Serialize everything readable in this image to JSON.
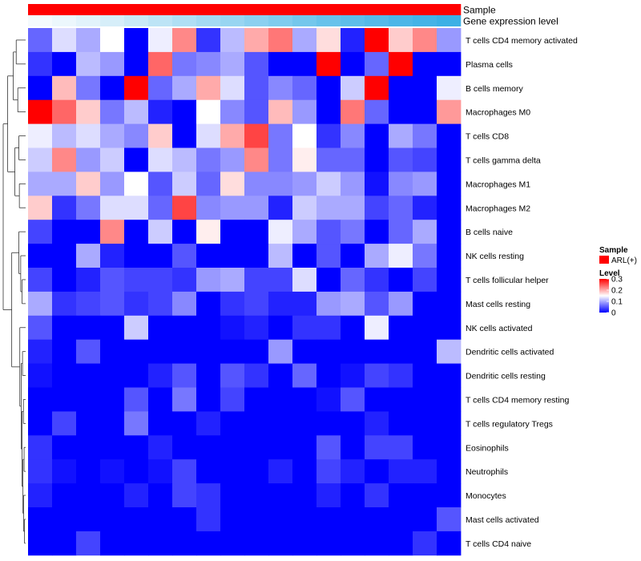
{
  "chart_data": {
    "type": "heatmap",
    "title": "",
    "n_columns": 18,
    "annotations": [
      {
        "name": "Sample",
        "colors": [
          "#ff0000"
        ]
      },
      {
        "name": "Gene expression level",
        "colors": [
          "#f4fafd",
          "#ecf7fc",
          "#e2f3fb",
          "#d6eef9",
          "#c9e9f7",
          "#bde4f6",
          "#b0dff4",
          "#a4daf3",
          "#98d5f1",
          "#8bd0f0",
          "#80ccee",
          "#74c7ec",
          "#68c2eb",
          "#5ebee9",
          "#55bae8",
          "#4cb6e7",
          "#44b3e6",
          "#3cb0e5"
        ]
      }
    ],
    "rows": [
      "T cells CD4 memory activated",
      "Plasma cells",
      "B cells memory",
      "Macrophages M0",
      "T cells CD8",
      "T cells gamma delta",
      "Macrophages M1",
      "Macrophages M2",
      "B cells naive",
      "NK cells resting",
      "T cells follicular helper",
      "Mast cells resting",
      "NK cells activated",
      "Dendritic cells activated",
      "Dendritic cells resting",
      "T cells CD4 memory resting",
      "T cells regulatory  Tregs",
      "Eosinophils",
      "Neutrophils",
      "Monocytes",
      "Mast cells activated",
      "T cells CD4 naive"
    ],
    "values": [
      [
        0.06,
        0.13,
        0.1,
        0.15,
        0.0,
        0.14,
        0.22,
        0.03,
        0.11,
        0.2,
        0.23,
        0.1,
        0.17,
        0.02,
        0.3,
        0.18,
        0.22,
        0.09
      ],
      [
        0.03,
        0.0,
        0.11,
        0.09,
        0.0,
        0.24,
        0.07,
        0.08,
        0.1,
        0.05,
        0.0,
        0.0,
        0.3,
        0.0,
        0.06,
        0.3,
        0.0,
        0.0
      ],
      [
        0.0,
        0.19,
        0.07,
        0.0,
        0.3,
        0.06,
        0.1,
        0.2,
        0.13,
        0.05,
        0.08,
        0.06,
        0.0,
        0.12,
        0.3,
        0.0,
        0.0,
        0.14
      ],
      [
        0.3,
        0.24,
        0.18,
        0.07,
        0.11,
        0.02,
        0.0,
        0.15,
        0.08,
        0.05,
        0.19,
        0.09,
        0.0,
        0.23,
        0.06,
        0.0,
        0.0,
        0.21
      ],
      [
        0.14,
        0.11,
        0.13,
        0.1,
        0.08,
        0.18,
        0.0,
        0.13,
        0.2,
        0.26,
        0.07,
        0.15,
        0.03,
        0.08,
        0.0,
        0.1,
        0.07,
        0.0
      ],
      [
        0.12,
        0.22,
        0.09,
        0.12,
        0.0,
        0.13,
        0.11,
        0.07,
        0.09,
        0.22,
        0.07,
        0.16,
        0.06,
        0.06,
        0.0,
        0.05,
        0.04,
        0.0
      ],
      [
        0.1,
        0.1,
        0.18,
        0.09,
        0.15,
        0.05,
        0.12,
        0.06,
        0.17,
        0.08,
        0.08,
        0.09,
        0.12,
        0.09,
        0.01,
        0.08,
        0.09,
        0.0
      ],
      [
        0.18,
        0.03,
        0.07,
        0.13,
        0.13,
        0.06,
        0.26,
        0.08,
        0.09,
        0.09,
        0.02,
        0.12,
        0.1,
        0.1,
        0.04,
        0.06,
        0.02,
        0.0
      ],
      [
        0.04,
        0.0,
        0.0,
        0.22,
        0.0,
        0.12,
        0.0,
        0.16,
        0.0,
        0.0,
        0.14,
        0.1,
        0.05,
        0.07,
        0.0,
        0.06,
        0.1,
        0.0
      ],
      [
        0.0,
        0.0,
        0.1,
        0.02,
        0.0,
        0.0,
        0.05,
        0.0,
        0.0,
        0.0,
        0.11,
        0.0,
        0.05,
        0.0,
        0.1,
        0.14,
        0.07,
        0.0
      ],
      [
        0.04,
        0.0,
        0.02,
        0.05,
        0.04,
        0.04,
        0.03,
        0.09,
        0.1,
        0.04,
        0.04,
        0.13,
        0.0,
        0.06,
        0.03,
        0.0,
        0.04,
        0.0
      ],
      [
        0.1,
        0.03,
        0.04,
        0.05,
        0.03,
        0.04,
        0.08,
        0.0,
        0.03,
        0.04,
        0.02,
        0.02,
        0.09,
        0.1,
        0.05,
        0.09,
        0.0,
        0.0
      ],
      [
        0.05,
        0.0,
        0.0,
        0.0,
        0.12,
        0.0,
        0.0,
        0.0,
        0.01,
        0.02,
        0.0,
        0.03,
        0.03,
        0.0,
        0.14,
        0.0,
        0.0,
        0.0
      ],
      [
        0.02,
        0.0,
        0.05,
        0.0,
        0.0,
        0.0,
        0.0,
        0.0,
        0.0,
        0.0,
        0.09,
        0.0,
        0.0,
        0.0,
        0.0,
        0.0,
        0.0,
        0.11
      ],
      [
        0.01,
        0.0,
        0.0,
        0.0,
        0.0,
        0.02,
        0.05,
        0.0,
        0.05,
        0.03,
        0.0,
        0.06,
        0.0,
        0.01,
        0.04,
        0.03,
        0.0,
        0.0
      ],
      [
        0.0,
        0.0,
        0.0,
        0.0,
        0.05,
        0.0,
        0.07,
        0.0,
        0.04,
        0.0,
        0.0,
        0.0,
        0.01,
        0.05,
        0.0,
        0.0,
        0.0,
        0.0
      ],
      [
        0.0,
        0.04,
        0.0,
        0.0,
        0.07,
        0.0,
        0.0,
        0.02,
        0.0,
        0.0,
        0.0,
        0.0,
        0.0,
        0.0,
        0.02,
        0.0,
        0.0,
        0.0
      ],
      [
        0.03,
        0.0,
        0.0,
        0.0,
        0.0,
        0.02,
        0.0,
        0.0,
        0.0,
        0.0,
        0.0,
        0.0,
        0.05,
        0.0,
        0.04,
        0.04,
        0.0,
        0.0
      ],
      [
        0.03,
        0.01,
        0.0,
        0.01,
        0.0,
        0.01,
        0.04,
        0.0,
        0.0,
        0.0,
        0.02,
        0.0,
        0.04,
        0.02,
        0.0,
        0.02,
        0.02,
        0.0
      ],
      [
        0.02,
        0.0,
        0.0,
        0.0,
        0.02,
        0.0,
        0.04,
        0.03,
        0.0,
        0.0,
        0.0,
        0.0,
        0.02,
        0.0,
        0.03,
        0.0,
        0.0,
        0.0
      ],
      [
        0.0,
        0.0,
        0.0,
        0.0,
        0.0,
        0.0,
        0.0,
        0.03,
        0.0,
        0.0,
        0.0,
        0.0,
        0.0,
        0.0,
        0.0,
        0.0,
        0.0,
        0.05
      ],
      [
        0.0,
        0.0,
        0.04,
        0.0,
        0.0,
        0.0,
        0.0,
        0.0,
        0.0,
        0.0,
        0.0,
        0.0,
        0.0,
        0.0,
        0.0,
        0.0,
        0.03,
        0.0
      ]
    ],
    "color_scale": {
      "min": 0,
      "mid": 0.15,
      "max": 0.3,
      "low_color": "#0000ff",
      "mid_color": "#ffffff",
      "high_color": "#ff0000"
    },
    "legend": {
      "placement": "right",
      "sample_title": "Sample",
      "sample_entries": [
        {
          "label": "ARL(+)",
          "color": "#ff0000"
        }
      ],
      "level_title": "Level",
      "level_ticks": [
        "0.3",
        "0.2",
        "0.1",
        "0"
      ]
    },
    "row_dendrogram": true
  }
}
